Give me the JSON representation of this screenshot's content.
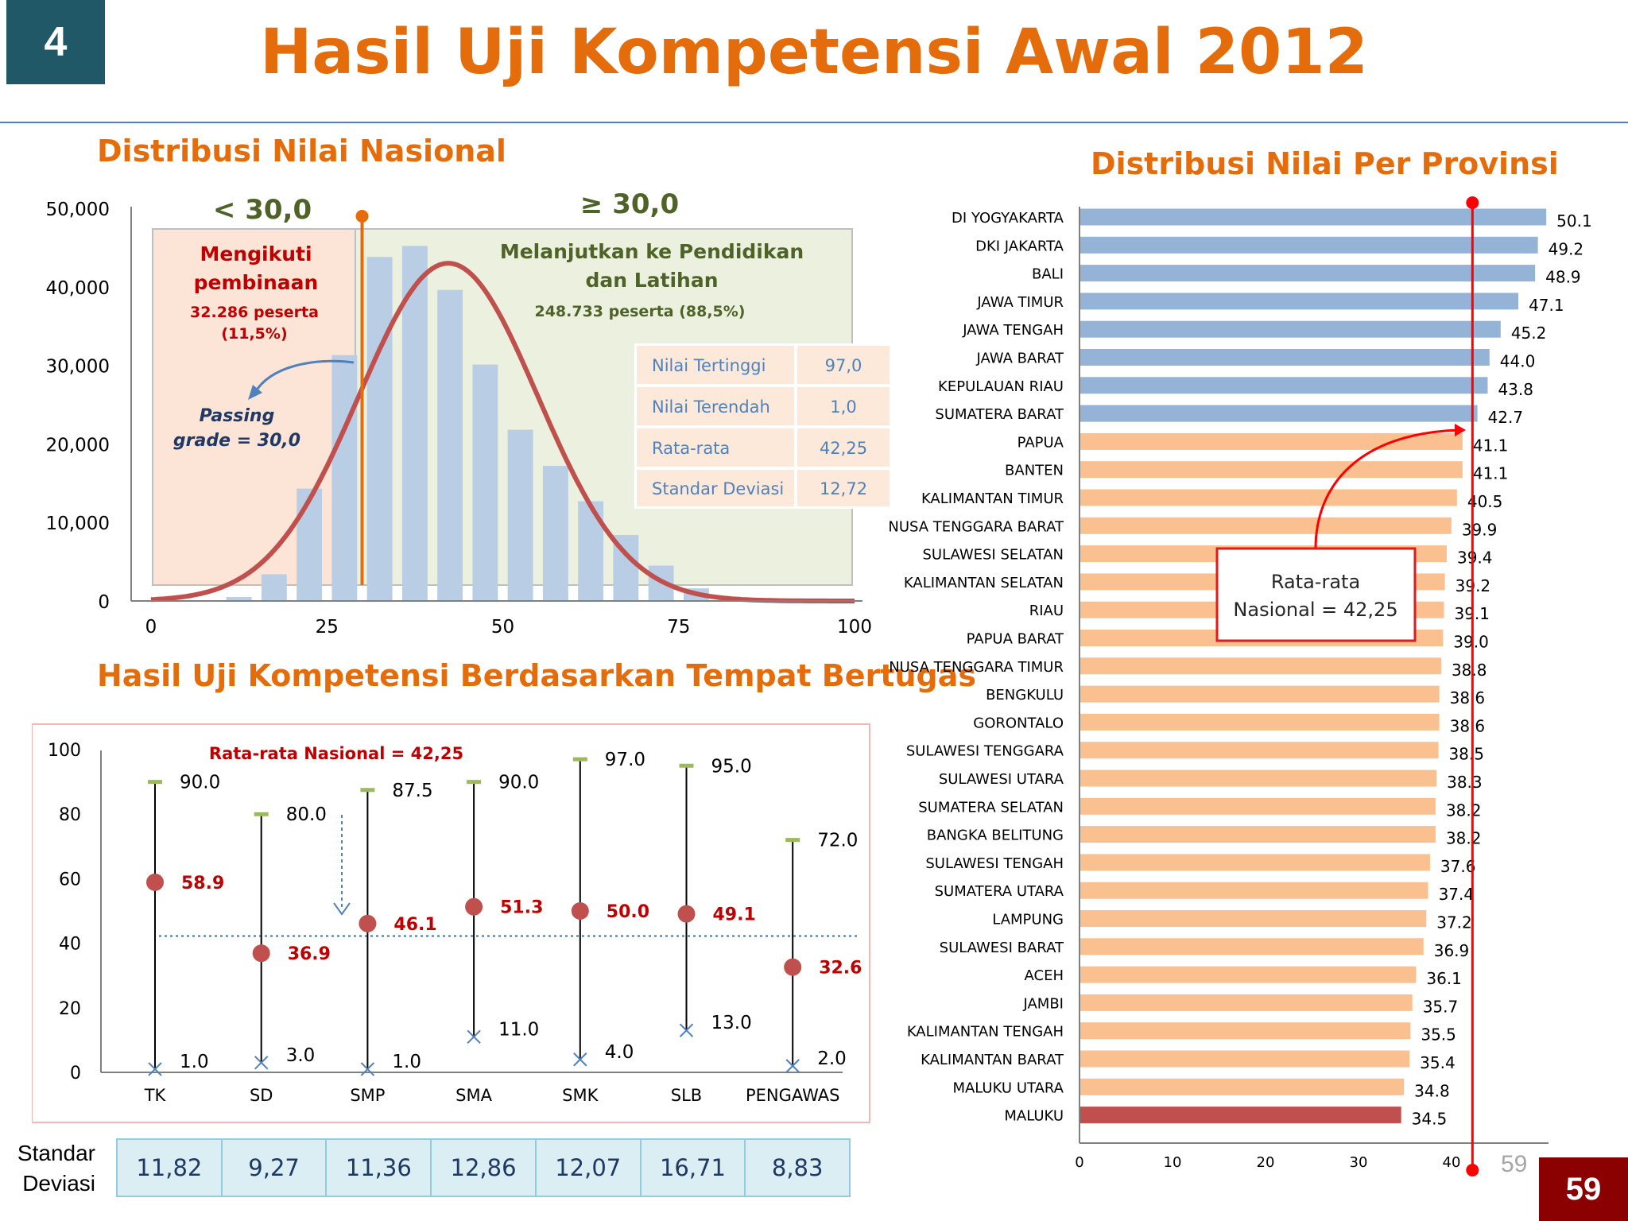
{
  "slide_number": "4",
  "title": "Hasil Uji Kompetensi Awal 2012",
  "page_number": "59",
  "page_number_gray": "59",
  "hist_section": {
    "title": "Distribusi Nilai Nasional",
    "left_zone": {
      "threshold": "< 30,0",
      "heading": [
        "Mengikuti",
        "pembinaan"
      ],
      "count": [
        "32.286 peserta",
        "(11,5%)"
      ],
      "color": "#C00000"
    },
    "right_zone": {
      "threshold": "≥ 30,0",
      "heading": [
        "Melanjutkan ke Pendidikan",
        "dan Latihan"
      ],
      "count": "248.733 peserta (88,5%)",
      "color": "#4F6228"
    },
    "passing_grade": [
      "Passing",
      "grade = 30,0"
    ],
    "stats_table": [
      {
        "label": "Nilai Tertinggi",
        "value": "97,0"
      },
      {
        "label": "Nilai Terendah",
        "value": "1,0"
      },
      {
        "label": "Rata-rata",
        "value": "42,25"
      },
      {
        "label": "Standar Deviasi",
        "value": "12,72"
      }
    ]
  },
  "prov_section": {
    "title": "Distribusi Nilai Per Provinsi",
    "callout": [
      "Rata-rata",
      "Nasional = 42,25"
    ]
  },
  "place_section": {
    "title": "Hasil Uji Kompetensi Berdasarkan Tempat Bertugas",
    "avg_label": "Rata-rata Nasional = 42,25",
    "sd_label": [
      "Standar",
      "Deviasi"
    ],
    "sd_values": [
      "11,82",
      "9,27",
      "11,36",
      "12,86",
      "12,07",
      "16,71",
      "8,83"
    ]
  },
  "chart_data": [
    {
      "type": "bar",
      "title": "Distribusi Nilai Nasional",
      "x_ticks": [
        0,
        25,
        50,
        75,
        100
      ],
      "y_ticks": [
        0,
        10000,
        20000,
        30000,
        40000,
        50000
      ],
      "y_tick_labels": [
        "0",
        "10,000",
        "20,000",
        "30,000",
        "40,000",
        "50,000"
      ],
      "xlim": [
        0,
        100
      ],
      "ylim": [
        0,
        50000
      ],
      "bins": [
        12.5,
        17.5,
        22.5,
        27.5,
        32.5,
        37.5,
        42.5,
        47.5,
        52.5,
        57.5,
        62.5,
        67.5,
        72.5,
        77.5,
        82.5
      ],
      "values": [
        500,
        3400,
        14300,
        31300,
        43800,
        45200,
        39600,
        30100,
        21800,
        17200,
        12700,
        8400,
        4500,
        1600,
        200
      ],
      "passing_grade": 30,
      "normal_curve": {
        "mean": 42.25,
        "sd": 12.72,
        "peak": 43000
      },
      "bar_color": "#B9CDE5",
      "curve_color": "#C0504D"
    },
    {
      "type": "bar",
      "orientation": "horizontal",
      "title": "Distribusi Nilai Per Provinsi",
      "categories": [
        "DI YOGYAKARTA",
        "DKI JAKARTA",
        "BALI",
        "JAWA TIMUR",
        "JAWA TENGAH",
        "JAWA BARAT",
        "KEPULAUAN RIAU",
        "SUMATERA BARAT",
        "PAPUA",
        "BANTEN",
        "KALIMANTAN TIMUR",
        "NUSA TENGGARA BARAT",
        "SULAWESI SELATAN",
        "KALIMANTAN SELATAN",
        "RIAU",
        "PAPUA BARAT",
        "NUSA TENGGARA TIMUR",
        "BENGKULU",
        "GORONTALO",
        "SULAWESI TENGGARA",
        "SULAWESI UTARA",
        "SUMATERA SELATAN",
        "BANGKA BELITUNG",
        "SULAWESI TENGAH",
        "SUMATERA UTARA",
        "LAMPUNG",
        "SULAWESI BARAT",
        "ACEH",
        "JAMBI",
        "KALIMANTAN TENGAH",
        "KALIMANTAN BARAT",
        "MALUKU UTARA",
        "MALUKU"
      ],
      "values": [
        50.1,
        49.2,
        48.9,
        47.1,
        45.2,
        44.0,
        43.8,
        42.7,
        41.1,
        41.1,
        40.5,
        39.9,
        39.4,
        39.2,
        39.1,
        39.0,
        38.8,
        38.6,
        38.6,
        38.5,
        38.3,
        38.2,
        38.2,
        37.6,
        37.4,
        37.2,
        36.9,
        36.1,
        35.7,
        35.5,
        35.4,
        34.8,
        34.5
      ],
      "value_labels": [
        "50.1",
        "49.2",
        "48.9",
        "47.1",
        "45.2",
        "44.0",
        "43.8",
        "42.7",
        "41.1",
        "41.1",
        "40.5",
        "39.9",
        "39.4",
        "39.2",
        "39.1",
        "39.0",
        "38.8",
        "38.6",
        "38.6",
        "38.5",
        "38.3",
        "38.2",
        "38.2",
        "37.6",
        "37.4",
        "37.2",
        "36.9",
        "36.1",
        "35.7",
        "35.5",
        "35.4",
        "34.8",
        "34.5"
      ],
      "x_ticks": [
        0,
        10,
        20,
        30,
        40
      ],
      "xlim": [
        0,
        50
      ],
      "average_line": 42.25,
      "colors": {
        "above": "#95B3D7",
        "below": "#FAC090",
        "lowest": "#C0504D",
        "avg_line": "#FF0000"
      }
    },
    {
      "type": "scatter",
      "title": "Hasil Uji Kompetensi Berdasarkan Tempat Bertugas",
      "categories": [
        "TK",
        "SD",
        "SMP",
        "SMA",
        "SMK",
        "SLB",
        "PENGAWAS"
      ],
      "max": [
        90.0,
        80.0,
        87.5,
        90.0,
        97.0,
        95.0,
        72.0
      ],
      "mean": [
        58.9,
        36.9,
        46.1,
        51.3,
        50.0,
        49.1,
        32.6
      ],
      "min": [
        1.0,
        3.0,
        1.0,
        11.0,
        4.0,
        13.0,
        2.0
      ],
      "max_labels": [
        "90.0",
        "80.0",
        "87.5",
        "90.0",
        "97.0",
        "95.0",
        "72.0"
      ],
      "mean_labels": [
        "58.9",
        "36.9",
        "46.1",
        "51.3",
        "50.0",
        "49.1",
        "32.6"
      ],
      "min_labels": [
        "1.0",
        "3.0",
        "1.0",
        "11.0",
        "4.0",
        "13.0",
        "2.0"
      ],
      "y_ticks": [
        0,
        20,
        40,
        60,
        80,
        100
      ],
      "ylim": [
        0,
        100
      ],
      "average_line": 42.25
    }
  ]
}
